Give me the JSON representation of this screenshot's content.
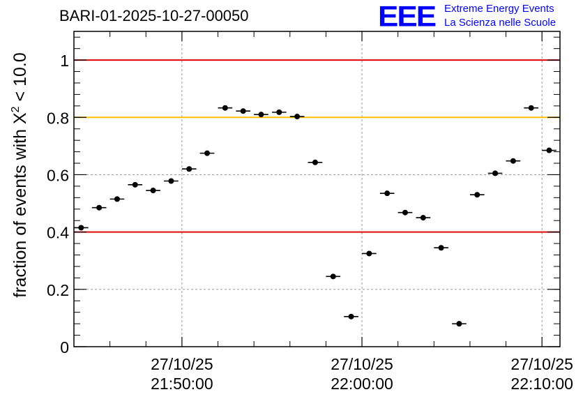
{
  "title": "BARI-01-2025-10-27-00050",
  "logo": {
    "mark": "EEE",
    "line1": "Extreme Energy Events",
    "line2": "La Scienza nelle Scuole"
  },
  "chart_data": {
    "type": "scatter",
    "ylabel": "fraction of events with X² < 10.0",
    "ylim": [
      0,
      1.1
    ],
    "yticks": [
      "0",
      "0.2",
      "0.4",
      "0.6",
      "0.8",
      "1"
    ],
    "xticks": [
      {
        "date": "27/10/25",
        "time": "21:50:00",
        "minute": 0
      },
      {
        "date": "27/10/25",
        "time": "22:00:00",
        "minute": 10
      },
      {
        "date": "27/10/25",
        "time": "22:10:00",
        "minute": 20
      }
    ],
    "xrange_minutes": [
      -6,
      21
    ],
    "bin_width_minutes": 0.8,
    "reference_lines": [
      {
        "value": 1.0,
        "color": "#e00000"
      },
      {
        "value": 0.8,
        "color": "#ffc000"
      },
      {
        "value": 0.4,
        "color": "#e00000"
      }
    ],
    "grid": true,
    "points": [
      {
        "x": -5.6,
        "y": 0.415
      },
      {
        "x": -4.6,
        "y": 0.485
      },
      {
        "x": -3.6,
        "y": 0.515
      },
      {
        "x": -2.6,
        "y": 0.565
      },
      {
        "x": -1.6,
        "y": 0.545
      },
      {
        "x": -0.6,
        "y": 0.578
      },
      {
        "x": 0.4,
        "y": 0.62
      },
      {
        "x": 1.4,
        "y": 0.675
      },
      {
        "x": 2.4,
        "y": 0.833
      },
      {
        "x": 3.4,
        "y": 0.822
      },
      {
        "x": 4.4,
        "y": 0.81
      },
      {
        "x": 5.4,
        "y": 0.818
      },
      {
        "x": 6.4,
        "y": 0.803
      },
      {
        "x": 7.4,
        "y": 0.643
      },
      {
        "x": 8.4,
        "y": 0.245
      },
      {
        "x": 9.4,
        "y": 0.105
      },
      {
        "x": 10.4,
        "y": 0.325
      },
      {
        "x": 11.4,
        "y": 0.535
      },
      {
        "x": 12.4,
        "y": 0.468
      },
      {
        "x": 13.4,
        "y": 0.45
      },
      {
        "x": 14.4,
        "y": 0.345
      },
      {
        "x": 15.4,
        "y": 0.08
      },
      {
        "x": 16.4,
        "y": 0.53
      },
      {
        "x": 17.4,
        "y": 0.605
      },
      {
        "x": 18.4,
        "y": 0.648
      },
      {
        "x": 19.4,
        "y": 0.833
      },
      {
        "x": 20.4,
        "y": 0.685
      }
    ]
  }
}
